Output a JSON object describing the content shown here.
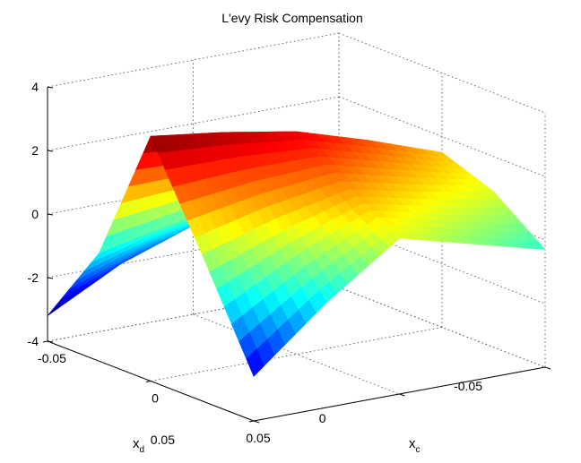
{
  "chart_data": {
    "type": "surface",
    "title": "L'evy Risk Compensation",
    "xlabel": "x",
    "xlabel_sub": "c",
    "ylabel": "x",
    "ylabel_sub": "d",
    "zlabel": "",
    "x_range": [
      -0.05,
      0.05
    ],
    "y_range": [
      -0.05,
      0.05
    ],
    "zlim": [
      -4,
      4
    ],
    "x_ticks": [
      "-0.05",
      "0",
      "0.05"
    ],
    "y_ticks": [
      "-0.05",
      "0",
      "0.05"
    ],
    "z_ticks": [
      "-4",
      "-2",
      "0",
      "2",
      "4"
    ],
    "colormap": "jet",
    "grid": true,
    "surface_samples": {
      "x": [
        -0.05,
        -0.025,
        0,
        0.025,
        0.05
      ],
      "y": [
        -0.05,
        -0.025,
        0,
        0.025,
        0.05
      ],
      "z": [
        [
          -0.3,
          0.9,
          1.5,
          0.9,
          -0.3
        ],
        [
          -0.7,
          0.6,
          2.3,
          1.3,
          0.3
        ],
        [
          -1.2,
          0.3,
          3.0,
          1.8,
          0.9
        ],
        [
          -2.0,
          -0.1,
          3.4,
          1.3,
          -0.7
        ],
        [
          -3.2,
          -0.6,
          3.7,
          0.6,
          -2.6
        ]
      ]
    }
  }
}
